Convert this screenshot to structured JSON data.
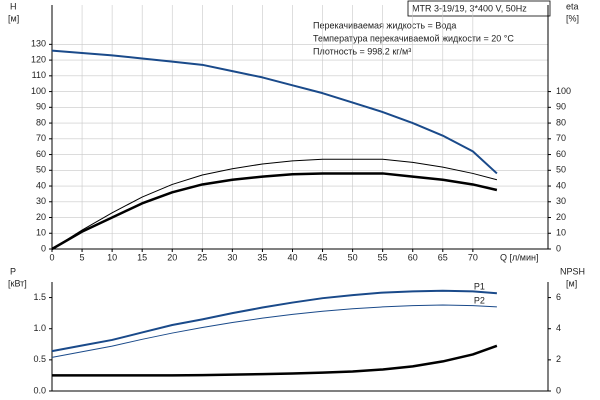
{
  "chart_data": [
    {
      "type": "line",
      "title": "MTR 3-19/19, 3*400 V, 50Hz",
      "annotations": [
        "Перекачиваемая жидкость = Вода",
        "Температура перекачиваемой жидкости = 20 °C",
        "Плотность = 998.2 кг/м³"
      ],
      "ylabel": "H",
      "yunit": "[м]",
      "y2label": "eta",
      "y2unit": "[%]",
      "xlabel": "Q [л/мин]",
      "x": [
        0,
        5,
        10,
        15,
        20,
        25,
        30,
        35,
        40,
        45,
        50,
        55,
        60,
        65,
        70,
        74
      ],
      "xlim": [
        0,
        82.5
      ],
      "xticks": [
        0,
        5,
        10,
        15,
        20,
        25,
        30,
        35,
        40,
        45,
        50,
        55,
        60,
        65,
        70
      ],
      "ylim": [
        0,
        155
      ],
      "yticks": [
        0,
        10,
        20,
        30,
        40,
        50,
        60,
        70,
        80,
        90,
        100,
        110,
        120,
        130
      ],
      "y2lim": [
        0,
        155
      ],
      "y2ticks": [
        0,
        10,
        20,
        30,
        40,
        50,
        60,
        70,
        80,
        90,
        100
      ],
      "grid": true,
      "series": [
        {
          "color": "#1a4a8a",
          "width": 2,
          "values": [
            126,
            124.5,
            123,
            121,
            119,
            117,
            113,
            109,
            104,
            99,
            93,
            87,
            80,
            72,
            62,
            48
          ]
        },
        {
          "color": "#000000",
          "width": 1,
          "axis": "y2",
          "values": [
            0,
            12,
            23,
            33,
            41,
            47,
            51,
            54,
            56,
            57,
            57,
            57,
            55,
            52,
            48,
            44
          ]
        },
        {
          "color": "#000000",
          "width": 2.5,
          "axis": "y2",
          "values": [
            0,
            11,
            20,
            29,
            36,
            41,
            44,
            46,
            47.5,
            48,
            48,
            48,
            46,
            44,
            41,
            37.5
          ]
        }
      ]
    },
    {
      "type": "line",
      "ylabel": "P",
      "yunit": "[кВт]",
      "y2label": "NPSH",
      "y2unit": "[м]",
      "x": [
        0,
        5,
        10,
        15,
        20,
        25,
        30,
        35,
        40,
        45,
        50,
        55,
        60,
        65,
        70,
        74
      ],
      "xlim": [
        0,
        82.5
      ],
      "ylim": [
        0,
        1.75
      ],
      "yticks": [
        {
          "value": 0,
          "label": "0.0"
        },
        0.5,
        {
          "value": 1,
          "label": "1.0"
        },
        1.5
      ],
      "y2lim": [
        0,
        7
      ],
      "y2ticks": [
        0,
        2,
        4,
        6
      ],
      "series": [
        {
          "name": "P1",
          "color": "#1a4a8a",
          "width": 2,
          "values": [
            0.64,
            0.73,
            0.82,
            0.94,
            1.06,
            1.15,
            1.25,
            1.34,
            1.42,
            1.49,
            1.54,
            1.58,
            1.6,
            1.61,
            1.6,
            1.57
          ]
        },
        {
          "name": "P2",
          "color": "#1a4a8a",
          "width": 1,
          "values": [
            0.54,
            0.63,
            0.72,
            0.83,
            0.93,
            1.02,
            1.1,
            1.17,
            1.23,
            1.28,
            1.32,
            1.35,
            1.37,
            1.38,
            1.37,
            1.35
          ]
        },
        {
          "color": "#000000",
          "width": 2.5,
          "axis": "y2",
          "values": [
            1,
            1,
            1,
            1,
            1,
            1.02,
            1.05,
            1.08,
            1.12,
            1.18,
            1.25,
            1.38,
            1.58,
            1.9,
            2.35,
            2.9
          ]
        }
      ]
    }
  ]
}
